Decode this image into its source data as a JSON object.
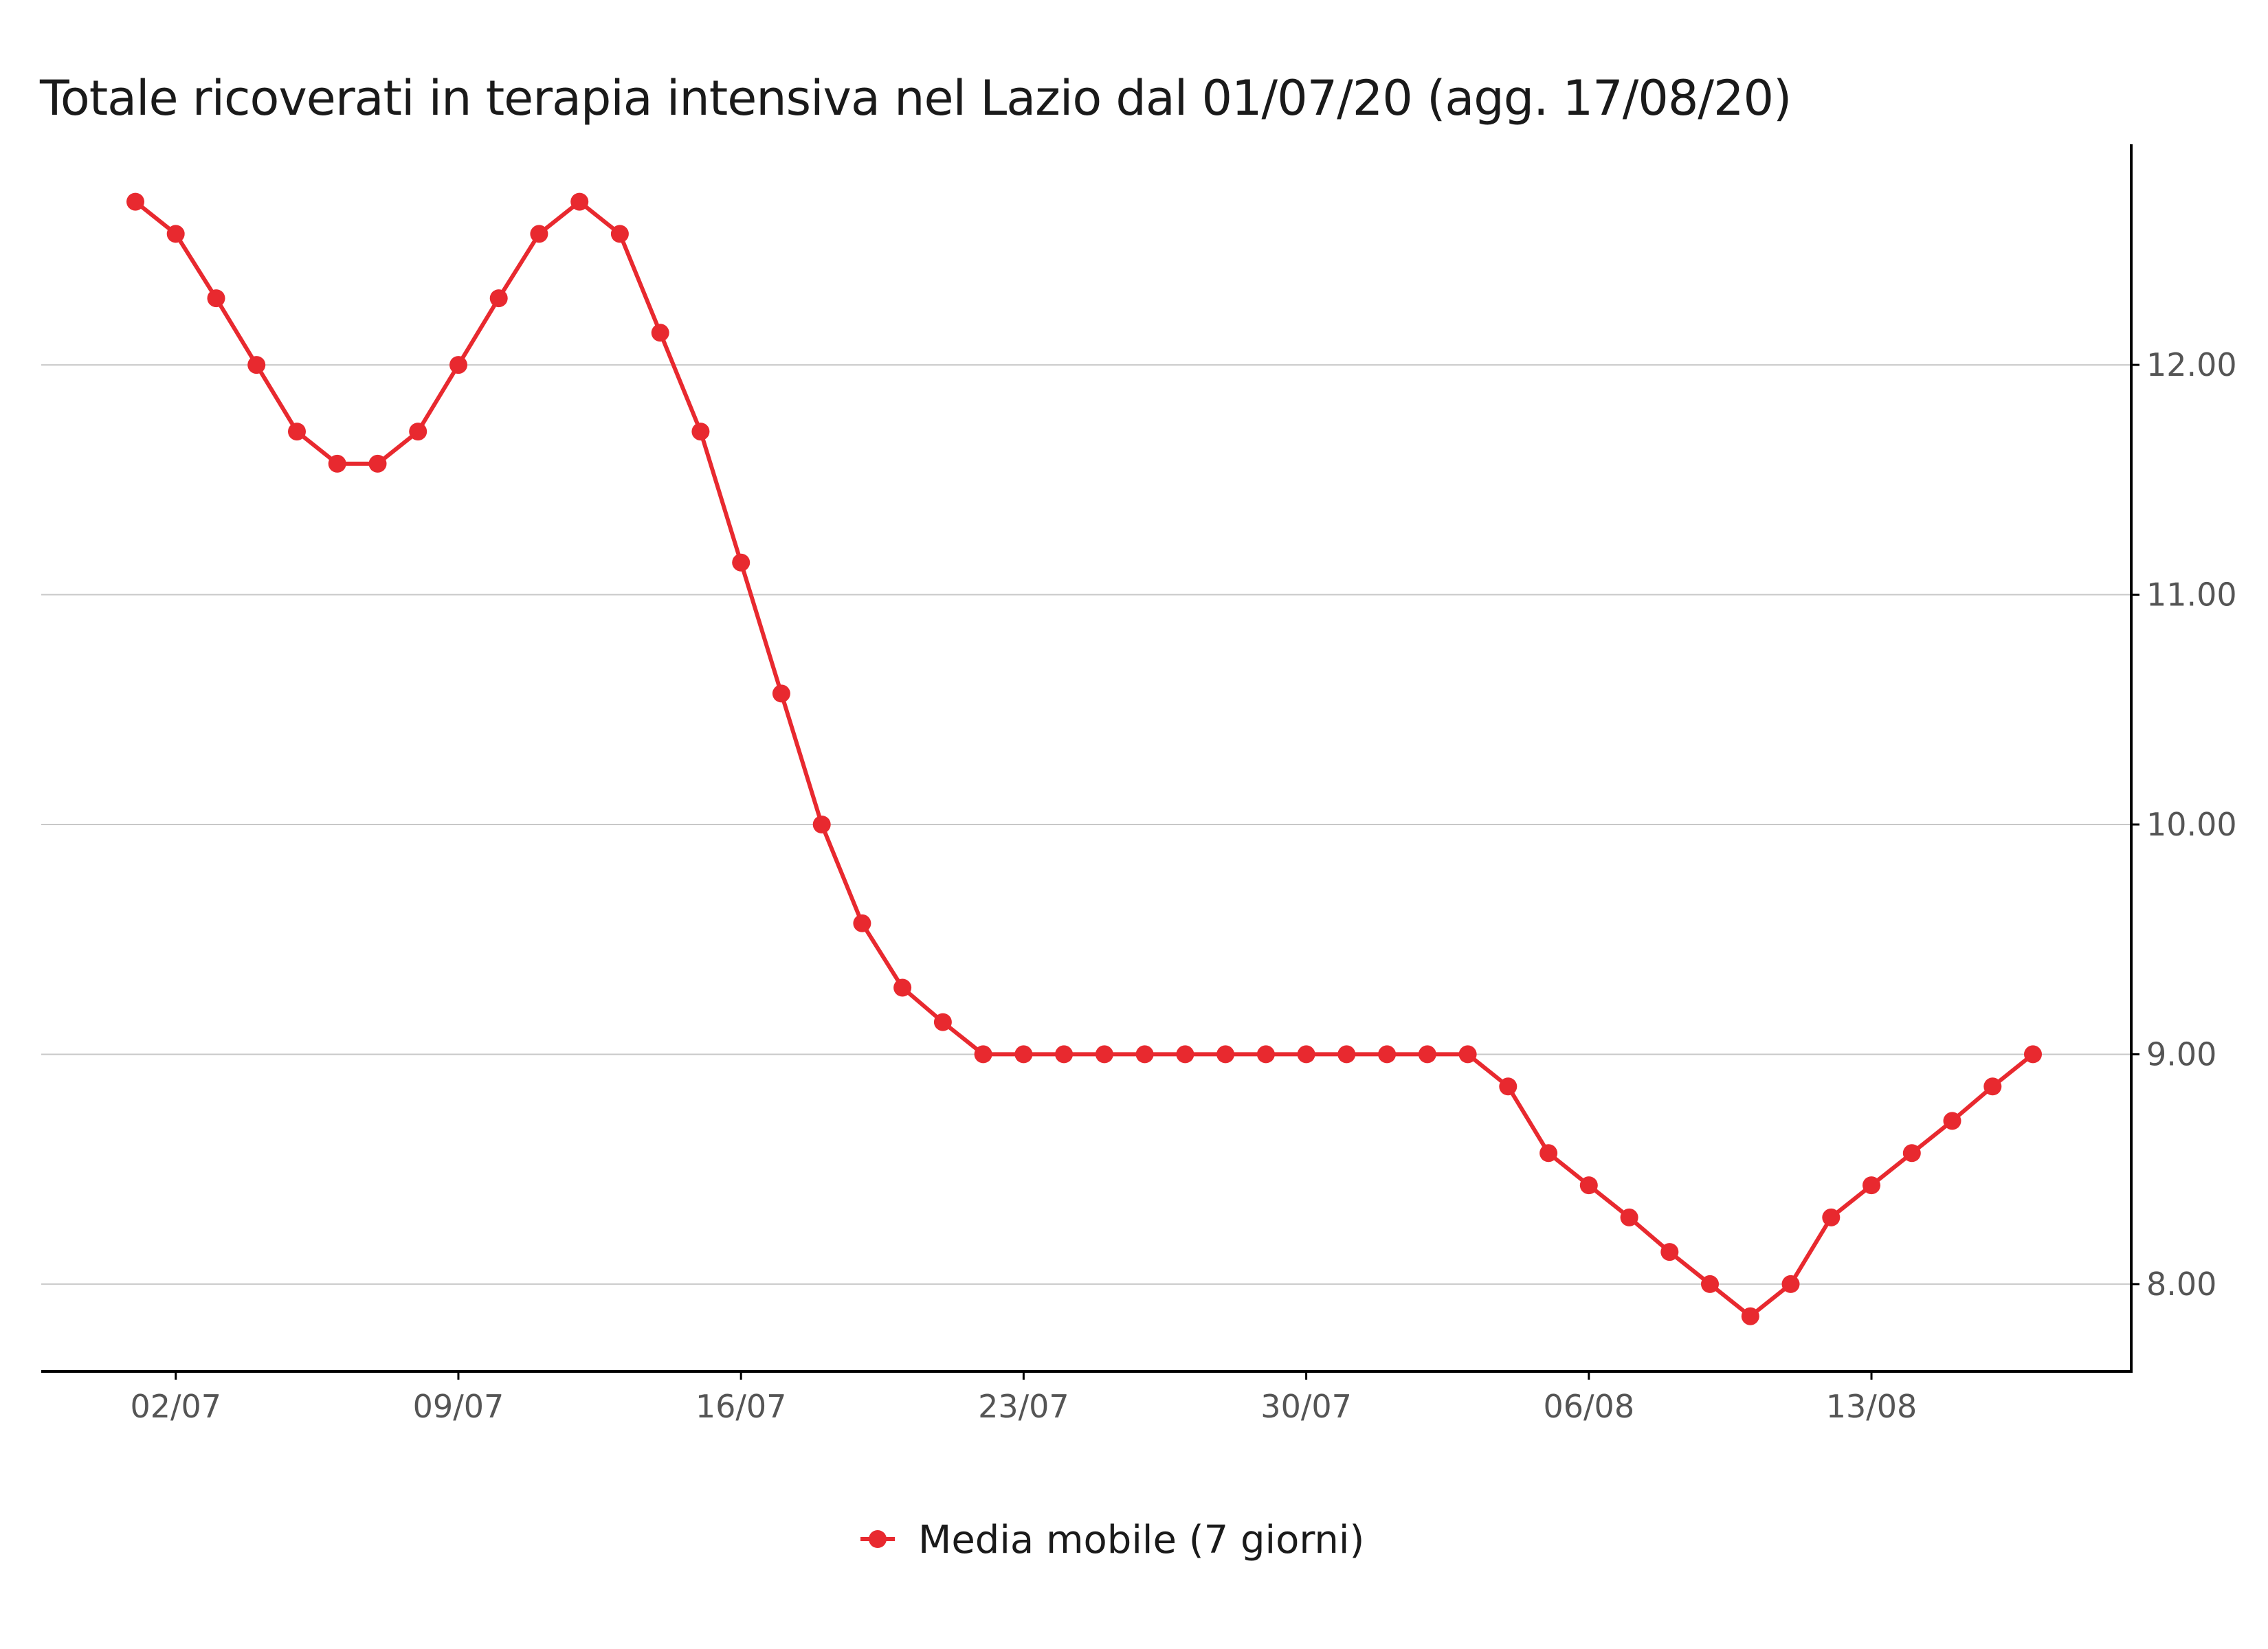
{
  "chart_data": {
    "type": "line",
    "title": "Totale ricoverati in terapia intensiva nel Lazio dal 01/07/20 (agg. 17/08/20)",
    "xlabel": "",
    "ylabel": "",
    "x_tick_labels": [
      "02/07",
      "09/07",
      "16/07",
      "23/07",
      "30/07",
      "06/08",
      "13/08"
    ],
    "y_ticks": [
      "8.00",
      "9.00",
      "10.00",
      "11.00",
      "12.00"
    ],
    "ylim": [
      7.62,
      12.96
    ],
    "y_axis_side": "right",
    "grid": "horizontal",
    "legend_position": "bottom",
    "color": "#e8292f",
    "series": [
      {
        "name": "Media mobile (7 giorni)",
        "x": [
          "2020-07-01",
          "2020-07-02",
          "2020-07-03",
          "2020-07-04",
          "2020-07-05",
          "2020-07-06",
          "2020-07-07",
          "2020-07-08",
          "2020-07-09",
          "2020-07-10",
          "2020-07-11",
          "2020-07-12",
          "2020-07-13",
          "2020-07-14",
          "2020-07-15",
          "2020-07-16",
          "2020-07-17",
          "2020-07-18",
          "2020-07-19",
          "2020-07-20",
          "2020-07-21",
          "2020-07-22",
          "2020-07-23",
          "2020-07-24",
          "2020-07-25",
          "2020-07-26",
          "2020-07-27",
          "2020-07-28",
          "2020-07-29",
          "2020-07-30",
          "2020-07-31",
          "2020-08-01",
          "2020-08-02",
          "2020-08-03",
          "2020-08-04",
          "2020-08-05",
          "2020-08-06",
          "2020-08-07",
          "2020-08-08",
          "2020-08-09",
          "2020-08-10",
          "2020-08-11",
          "2020-08-12",
          "2020-08-13",
          "2020-08-14",
          "2020-08-15",
          "2020-08-16",
          "2020-08-17"
        ],
        "values": [
          12.71,
          12.57,
          12.29,
          12.0,
          11.71,
          11.57,
          11.57,
          11.71,
          12.0,
          12.29,
          12.57,
          12.71,
          12.57,
          12.14,
          11.71,
          11.14,
          10.57,
          10.0,
          9.57,
          9.29,
          9.14,
          9.0,
          9.0,
          9.0,
          9.0,
          9.0,
          9.0,
          9.0,
          9.0,
          9.0,
          9.0,
          9.0,
          9.0,
          9.0,
          8.86,
          8.57,
          8.43,
          8.29,
          8.14,
          8.0,
          7.86,
          8.0,
          8.29,
          8.43,
          8.57,
          8.71,
          8.86,
          9.0
        ]
      }
    ]
  }
}
